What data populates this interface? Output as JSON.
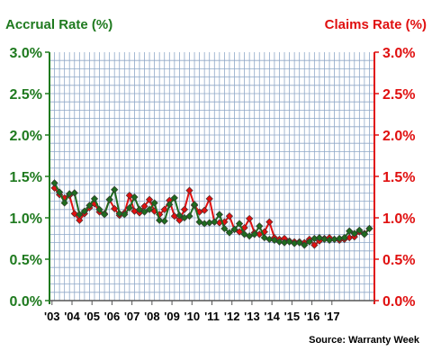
{
  "chart_data": {
    "type": "line",
    "title_left": "Accrual Rate (%)",
    "title_right": "Claims Rate (%)",
    "source": "Source: Warranty Week",
    "x_tick_labels": [
      "'03",
      "'04",
      "'05",
      "'06",
      "'07",
      "'08",
      "'09",
      "'10",
      "'11",
      "'12",
      "'13",
      "'14",
      "'15",
      "'16",
      "'17"
    ],
    "y_left_tick_labels": [
      "0.0%",
      "0.5%",
      "1.0%",
      "1.5%",
      "2.0%",
      "2.5%",
      "3.0%"
    ],
    "y_right_tick_labels": [
      "0.0%",
      "0.5%",
      "1.0%",
      "1.5%",
      "2.0%",
      "2.5%",
      "3.0%"
    ],
    "ylim": [
      0,
      3.0
    ],
    "grid": true,
    "series": [
      {
        "name": "Claims Rate (%)",
        "color": "#e01010",
        "axis": "right",
        "values": [
          1.36,
          1.28,
          1.24,
          1.27,
          1.05,
          0.97,
          1.05,
          1.12,
          1.17,
          1.07,
          1.05,
          1.22,
          1.11,
          1.03,
          1.06,
          1.27,
          1.08,
          1.06,
          1.14,
          1.22,
          1.08,
          1.04,
          1.1,
          1.21,
          1.02,
          0.97,
          1.1,
          1.33,
          1.15,
          1.07,
          1.09,
          1.23,
          0.95,
          0.94,
          0.95,
          1.02,
          0.86,
          0.83,
          0.88,
          0.99,
          0.82,
          0.8,
          0.83,
          0.95,
          0.76,
          0.74,
          0.75,
          0.72,
          0.71,
          0.71,
          0.7,
          0.74,
          0.67,
          0.72,
          0.75,
          0.76,
          0.74,
          0.73,
          0.74,
          0.76,
          0.77,
          0.83,
          0.81,
          0.87
        ]
      },
      {
        "name": "Accrual Rate (%)",
        "color": "#1f6b1f",
        "axis": "left",
        "values": [
          1.42,
          1.31,
          1.18,
          1.29,
          1.3,
          1.04,
          1.08,
          1.15,
          1.23,
          1.1,
          1.04,
          1.22,
          1.34,
          1.05,
          1.04,
          1.12,
          1.25,
          1.1,
          1.07,
          1.1,
          1.18,
          0.97,
          0.96,
          1.16,
          1.24,
          1.03,
          1.0,
          1.02,
          1.16,
          0.95,
          0.93,
          0.94,
          0.95,
          1.04,
          0.87,
          0.82,
          0.86,
          0.93,
          0.8,
          0.78,
          0.8,
          0.9,
          0.76,
          0.74,
          0.73,
          0.71,
          0.7,
          0.71,
          0.69,
          0.7,
          0.67,
          0.71,
          0.75,
          0.76,
          0.74,
          0.73,
          0.74,
          0.75,
          0.76,
          0.84,
          0.81,
          0.85,
          0.8,
          0.87
        ]
      }
    ]
  }
}
